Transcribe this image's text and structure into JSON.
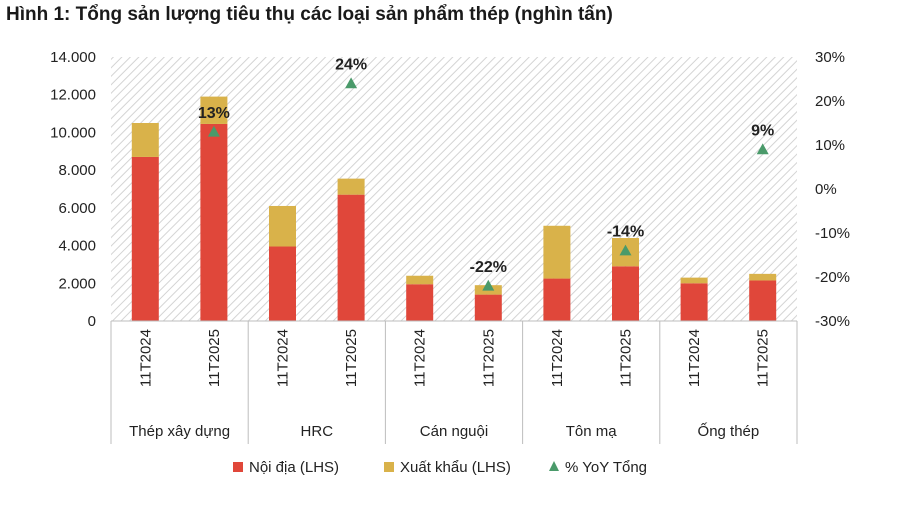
{
  "title": "Hình 1: Tổng sản lượng tiêu thụ các loại sản phẩm thép (nghìn tấn)",
  "chart_data": {
    "type": "bar",
    "stacked": true,
    "groups": [
      "Thép xây dựng",
      "HRC",
      "Cán nguội",
      "Tôn mạ",
      "Ống thép"
    ],
    "periods": [
      "11T2024",
      "11T2025"
    ],
    "categories": [
      "11T2024",
      "11T2025",
      "11T2024",
      "11T2025",
      "11T2024",
      "11T2025",
      "11T2024",
      "11T2025",
      "11T2024",
      "11T2025"
    ],
    "series": [
      {
        "name": "Nội địa (LHS)",
        "axis": "left",
        "color": "#e0473a",
        "values": [
          8700,
          10450,
          3950,
          6700,
          1950,
          1400,
          2250,
          2900,
          2000,
          2150
        ]
      },
      {
        "name": "Xuất khẩu (LHS)",
        "axis": "left",
        "color": "#d9b24a",
        "values": [
          1800,
          1450,
          2150,
          850,
          450,
          500,
          2800,
          1500,
          300,
          350
        ]
      },
      {
        "name": "% YoY Tổng",
        "axis": "right",
        "color": "#4a9a6a",
        "marker": "triangle",
        "values": [
          null,
          13,
          null,
          24,
          null,
          -22,
          null,
          -14,
          null,
          9
        ],
        "labels": [
          "",
          "13%",
          "",
          "24%",
          "",
          "-22%",
          "",
          "-14%",
          "",
          "9%"
        ]
      }
    ],
    "y_left": {
      "min": 0,
      "max": 14000,
      "step": 2000,
      "ticks": [
        "0",
        "2.000",
        "4.000",
        "6.000",
        "8.000",
        "10.000",
        "12.000",
        "14.000"
      ]
    },
    "y_right": {
      "min": -30,
      "max": 30,
      "step": 10,
      "ticks": [
        "-30%",
        "-20%",
        "-10%",
        "0%",
        "10%",
        "20%",
        "30%"
      ]
    },
    "plot_background": "hatched",
    "legend_position": "bottom"
  }
}
